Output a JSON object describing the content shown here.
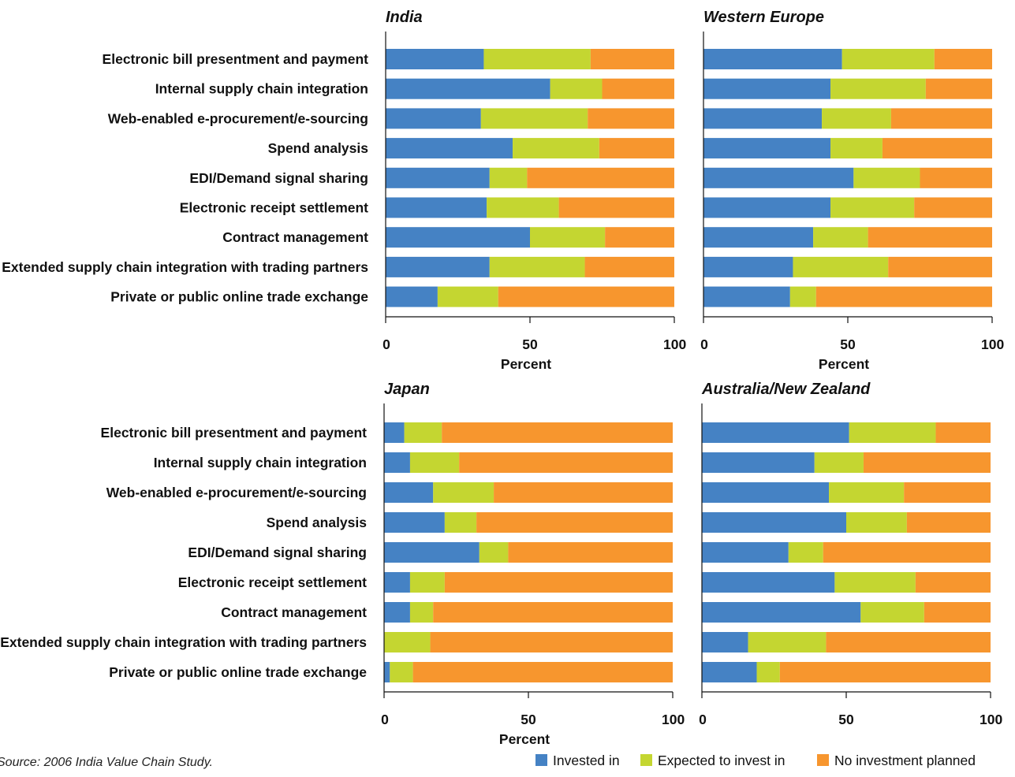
{
  "chart_data": {
    "type": "bar",
    "stacked": true,
    "orientation": "horizontal",
    "colors": {
      "invested": "#4582c4",
      "expected": "#c4d631",
      "none": "#f7962e"
    },
    "legend": {
      "placement": "bottom-right",
      "entries": [
        "Invested in",
        "Expected to invest in",
        "No investment planned"
      ]
    },
    "source": "Source: 2006 India Value Chain Study.",
    "categories": [
      "Electronic bill presentment and payment",
      "Internal supply chain integration",
      "Web-enabled e-procurement/e-sourcing",
      "Spend analysis",
      "EDI/Demand signal sharing",
      "Electronic receipt settlement",
      "Contract management",
      "Extended supply chain integration with trading partners",
      "Private or public online trade exchange"
    ],
    "xlim": [
      0,
      100
    ],
    "xticks": [
      "0",
      "50",
      "100"
    ],
    "panels": [
      {
        "title": "India",
        "xlabel": "Percent",
        "series": [
          {
            "name": "Invested in",
            "values": [
              34,
              57,
              33,
              44,
              36,
              35,
              50,
              36,
              18
            ]
          },
          {
            "name": "Expected to invest in",
            "values": [
              37,
              18,
              37,
              30,
              13,
              25,
              26,
              33,
              21
            ]
          },
          {
            "name": "No investment planned",
            "values": [
              29,
              25,
              30,
              26,
              51,
              40,
              24,
              31,
              61
            ]
          }
        ]
      },
      {
        "title": "Western Europe",
        "xlabel": "Percent",
        "series": [
          {
            "name": "Invested in",
            "values": [
              48,
              44,
              41,
              44,
              52,
              44,
              38,
              31,
              30
            ]
          },
          {
            "name": "Expected to invest in",
            "values": [
              32,
              33,
              24,
              18,
              23,
              29,
              19,
              33,
              9
            ]
          },
          {
            "name": "No investment planned",
            "values": [
              20,
              23,
              35,
              38,
              25,
              27,
              43,
              36,
              61
            ]
          }
        ]
      },
      {
        "title": "Japan",
        "xlabel": "Percent",
        "series": [
          {
            "name": "Invested in",
            "values": [
              7,
              9,
              17,
              21,
              33,
              9,
              9,
              0,
              2
            ]
          },
          {
            "name": "Expected to invest in",
            "values": [
              13,
              17,
              21,
              11,
              10,
              12,
              8,
              16,
              8
            ]
          },
          {
            "name": "No investment planned",
            "values": [
              80,
              74,
              62,
              68,
              57,
              79,
              83,
              84,
              90
            ]
          }
        ]
      },
      {
        "title": "Australia/New Zealand",
        "xlabel": "",
        "series": [
          {
            "name": "Invested in",
            "values": [
              51,
              39,
              44,
              50,
              30,
              46,
              55,
              16,
              19
            ]
          },
          {
            "name": "Expected to invest in",
            "values": [
              30,
              17,
              26,
              21,
              12,
              28,
              22,
              27,
              8
            ]
          },
          {
            "name": "No investment planned",
            "values": [
              19,
              44,
              30,
              29,
              58,
              26,
              23,
              57,
              73
            ]
          }
        ]
      }
    ]
  }
}
